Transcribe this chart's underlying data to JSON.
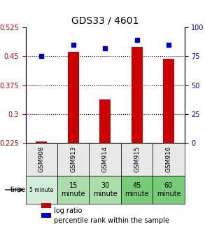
{
  "title": "GDS33 / 4601",
  "samples": [
    "GSM908",
    "GSM913",
    "GSM914",
    "GSM915",
    "GSM916"
  ],
  "time_labels": [
    "5 minute",
    "15\nminute",
    "30\nminute",
    "45\nminute",
    "60\nminute"
  ],
  "time_colors": [
    "#d4edda",
    "#aaddaa",
    "#aaddaa",
    "#77cc77",
    "#77cc77"
  ],
  "log_ratio": [
    0.228,
    0.462,
    0.338,
    0.475,
    0.443
  ],
  "percentile_rank": [
    75,
    85,
    82,
    89,
    85
  ],
  "ylim_left": [
    0.225,
    0.525
  ],
  "ylim_right": [
    0,
    100
  ],
  "yticks_left": [
    0.225,
    0.3,
    0.375,
    0.45,
    0.525
  ],
  "yticks_right": [
    0,
    25,
    50,
    75,
    100
  ],
  "bar_color": "#cc0000",
  "dot_color": "#0000cc",
  "grid_color": "#000000",
  "bg_color": "#ffffff",
  "cell_bg_light": "#e8e8e8",
  "legend_bar_label": "log ratio",
  "legend_dot_label": "percentile rank within the sample"
}
